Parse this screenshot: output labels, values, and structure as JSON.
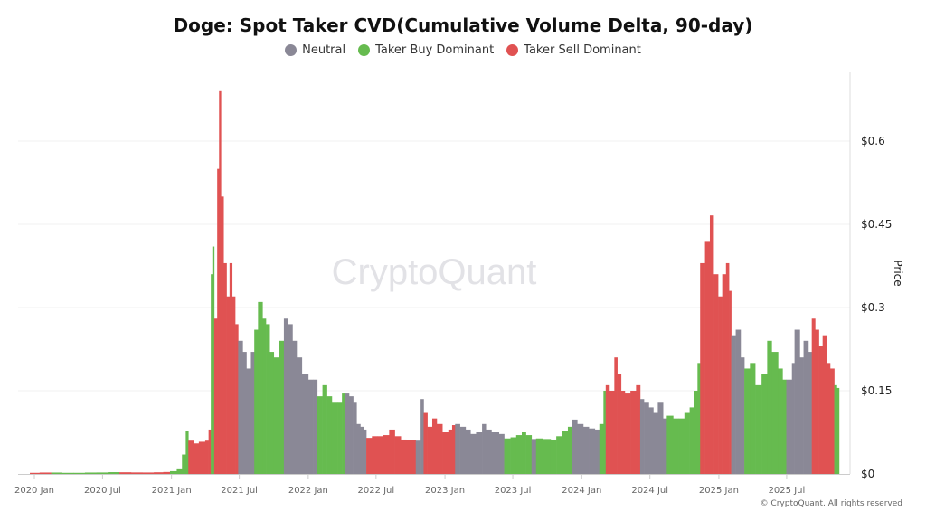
{
  "chart_data": {
    "type": "bar",
    "title": "Doge: Spot Taker CVD(Cumulative Volume Delta, 90-day)",
    "ylabel": "Price",
    "ylim": [
      0,
      0.69
    ],
    "y_ticks": [
      "$0",
      "$0.15",
      "$0.3",
      "$0.45",
      "$0.6"
    ],
    "y_tick_values": [
      0,
      0.15,
      0.3,
      0.45,
      0.6
    ],
    "x_ticks": [
      "2020 Jan",
      "2020 Jul",
      "2021 Jan",
      "2021 Jul",
      "2022 Jan",
      "2022 Jul",
      "2023 Jan",
      "2023 Jul",
      "2024 Jan",
      "2024 Jul",
      "2025 Jan",
      "2025 Jul"
    ],
    "x_tick_dates": [
      "2020-01-01",
      "2020-07-01",
      "2021-01-01",
      "2021-07-01",
      "2022-01-01",
      "2022-07-01",
      "2023-01-01",
      "2023-07-01",
      "2024-01-01",
      "2024-07-01",
      "2025-01-01",
      "2025-07-01"
    ],
    "grid": true,
    "legend_position": "top-center",
    "legend": [
      {
        "key": "N",
        "label": "Neutral",
        "color": "#8a8896"
      },
      {
        "key": "B",
        "label": "Taker Buy Dominant",
        "color": "#66bb4f"
      },
      {
        "key": "S",
        "label": "Taker Sell Dominant",
        "color": "#e05252"
      }
    ],
    "points": [
      [
        "2019-12-20",
        0.002,
        "S"
      ],
      [
        "2020-01-15",
        0.0025,
        "S"
      ],
      [
        "2020-02-15",
        0.0025,
        "B"
      ],
      [
        "2020-03-15",
        0.002,
        "B"
      ],
      [
        "2020-04-15",
        0.002,
        "B"
      ],
      [
        "2020-05-15",
        0.0025,
        "B"
      ],
      [
        "2020-06-15",
        0.0026,
        "B"
      ],
      [
        "2020-07-15",
        0.0032,
        "B"
      ],
      [
        "2020-08-15",
        0.003,
        "S"
      ],
      [
        "2020-09-15",
        0.0027,
        "S"
      ],
      [
        "2020-10-15",
        0.0026,
        "S"
      ],
      [
        "2020-11-15",
        0.003,
        "S"
      ],
      [
        "2020-12-10",
        0.0035,
        "S"
      ],
      [
        "2020-12-28",
        0.005,
        "B"
      ],
      [
        "2021-01-15",
        0.01,
        "B"
      ],
      [
        "2021-01-29",
        0.035,
        "B"
      ],
      [
        "2021-02-08",
        0.077,
        "B"
      ],
      [
        "2021-02-15",
        0.06,
        "S"
      ],
      [
        "2021-03-01",
        0.055,
        "S"
      ],
      [
        "2021-03-15",
        0.058,
        "S"
      ],
      [
        "2021-04-01",
        0.06,
        "S"
      ],
      [
        "2021-04-10",
        0.08,
        "S"
      ],
      [
        "2021-04-16",
        0.36,
        "B"
      ],
      [
        "2021-04-20",
        0.41,
        "B"
      ],
      [
        "2021-04-25",
        0.28,
        "S"
      ],
      [
        "2021-05-03",
        0.55,
        "S"
      ],
      [
        "2021-05-08",
        0.69,
        "S"
      ],
      [
        "2021-05-13",
        0.5,
        "S"
      ],
      [
        "2021-05-20",
        0.38,
        "S"
      ],
      [
        "2021-05-28",
        0.32,
        "S"
      ],
      [
        "2021-06-05",
        0.38,
        "S"
      ],
      [
        "2021-06-12",
        0.32,
        "S"
      ],
      [
        "2021-06-20",
        0.27,
        "S"
      ],
      [
        "2021-06-28",
        0.24,
        "N"
      ],
      [
        "2021-07-10",
        0.22,
        "N"
      ],
      [
        "2021-07-20",
        0.19,
        "N"
      ],
      [
        "2021-08-01",
        0.22,
        "N"
      ],
      [
        "2021-08-10",
        0.26,
        "B"
      ],
      [
        "2021-08-20",
        0.31,
        "B"
      ],
      [
        "2021-09-01",
        0.28,
        "B"
      ],
      [
        "2021-09-10",
        0.27,
        "B"
      ],
      [
        "2021-09-20",
        0.22,
        "B"
      ],
      [
        "2021-10-01",
        0.21,
        "B"
      ],
      [
        "2021-10-15",
        0.24,
        "B"
      ],
      [
        "2021-10-28",
        0.28,
        "N"
      ],
      [
        "2021-11-08",
        0.27,
        "N"
      ],
      [
        "2021-11-20",
        0.24,
        "N"
      ],
      [
        "2021-12-01",
        0.21,
        "N"
      ],
      [
        "2021-12-15",
        0.18,
        "N"
      ],
      [
        "2022-01-01",
        0.17,
        "N"
      ],
      [
        "2022-01-15",
        0.17,
        "N"
      ],
      [
        "2022-01-25",
        0.14,
        "B"
      ],
      [
        "2022-02-08",
        0.16,
        "B"
      ],
      [
        "2022-02-20",
        0.14,
        "B"
      ],
      [
        "2022-03-05",
        0.13,
        "B"
      ],
      [
        "2022-03-20",
        0.13,
        "B"
      ],
      [
        "2022-04-01",
        0.145,
        "B"
      ],
      [
        "2022-04-10",
        0.145,
        "N"
      ],
      [
        "2022-04-20",
        0.14,
        "N"
      ],
      [
        "2022-05-01",
        0.13,
        "N"
      ],
      [
        "2022-05-10",
        0.09,
        "N"
      ],
      [
        "2022-05-20",
        0.085,
        "N"
      ],
      [
        "2022-05-28",
        0.08,
        "N"
      ],
      [
        "2022-06-05",
        0.065,
        "S"
      ],
      [
        "2022-06-20",
        0.068,
        "S"
      ],
      [
        "2022-07-05",
        0.068,
        "S"
      ],
      [
        "2022-07-20",
        0.07,
        "S"
      ],
      [
        "2022-08-05",
        0.08,
        "S"
      ],
      [
        "2022-08-20",
        0.068,
        "S"
      ],
      [
        "2022-09-05",
        0.062,
        "S"
      ],
      [
        "2022-09-20",
        0.061,
        "S"
      ],
      [
        "2022-10-01",
        0.061,
        "S"
      ],
      [
        "2022-10-15",
        0.06,
        "N"
      ],
      [
        "2022-10-28",
        0.135,
        "N"
      ],
      [
        "2022-11-05",
        0.11,
        "S"
      ],
      [
        "2022-11-15",
        0.085,
        "S"
      ],
      [
        "2022-11-28",
        0.1,
        "S"
      ],
      [
        "2022-12-10",
        0.09,
        "S"
      ],
      [
        "2022-12-25",
        0.075,
        "S"
      ],
      [
        "2023-01-10",
        0.08,
        "S"
      ],
      [
        "2023-01-20",
        0.088,
        "S"
      ],
      [
        "2023-01-28",
        0.09,
        "N"
      ],
      [
        "2023-02-10",
        0.085,
        "N"
      ],
      [
        "2023-02-25",
        0.08,
        "N"
      ],
      [
        "2023-03-10",
        0.072,
        "N"
      ],
      [
        "2023-03-25",
        0.075,
        "N"
      ],
      [
        "2023-04-10",
        0.09,
        "N"
      ],
      [
        "2023-04-20",
        0.08,
        "N"
      ],
      [
        "2023-05-05",
        0.075,
        "N"
      ],
      [
        "2023-05-25",
        0.072,
        "N"
      ],
      [
        "2023-06-08",
        0.064,
        "B"
      ],
      [
        "2023-06-25",
        0.066,
        "B"
      ],
      [
        "2023-07-10",
        0.07,
        "B"
      ],
      [
        "2023-07-25",
        0.075,
        "B"
      ],
      [
        "2023-08-05",
        0.07,
        "B"
      ],
      [
        "2023-08-20",
        0.063,
        "N"
      ],
      [
        "2023-09-01",
        0.064,
        "B"
      ],
      [
        "2023-09-20",
        0.063,
        "B"
      ],
      [
        "2023-10-10",
        0.062,
        "B"
      ],
      [
        "2023-10-25",
        0.068,
        "B"
      ],
      [
        "2023-11-10",
        0.078,
        "B"
      ],
      [
        "2023-11-25",
        0.085,
        "B"
      ],
      [
        "2023-12-06",
        0.098,
        "N"
      ],
      [
        "2023-12-20",
        0.09,
        "N"
      ],
      [
        "2024-01-05",
        0.085,
        "N"
      ],
      [
        "2024-01-20",
        0.082,
        "N"
      ],
      [
        "2024-02-05",
        0.08,
        "N"
      ],
      [
        "2024-02-17",
        0.09,
        "B"
      ],
      [
        "2024-02-28",
        0.15,
        "B"
      ],
      [
        "2024-03-05",
        0.16,
        "S"
      ],
      [
        "2024-03-15",
        0.15,
        "S"
      ],
      [
        "2024-03-28",
        0.21,
        "S"
      ],
      [
        "2024-04-05",
        0.18,
        "S"
      ],
      [
        "2024-04-15",
        0.15,
        "S"
      ],
      [
        "2024-04-25",
        0.145,
        "S"
      ],
      [
        "2024-05-10",
        0.15,
        "S"
      ],
      [
        "2024-05-25",
        0.16,
        "S"
      ],
      [
        "2024-06-05",
        0.135,
        "N"
      ],
      [
        "2024-06-15",
        0.13,
        "N"
      ],
      [
        "2024-06-28",
        0.12,
        "N"
      ],
      [
        "2024-07-10",
        0.11,
        "N"
      ],
      [
        "2024-07-22",
        0.13,
        "N"
      ],
      [
        "2024-08-05",
        0.1,
        "N"
      ],
      [
        "2024-08-15",
        0.105,
        "B"
      ],
      [
        "2024-09-01",
        0.1,
        "B"
      ],
      [
        "2024-09-15",
        0.1,
        "B"
      ],
      [
        "2024-10-01",
        0.11,
        "B"
      ],
      [
        "2024-10-15",
        0.12,
        "B"
      ],
      [
        "2024-10-28",
        0.15,
        "B"
      ],
      [
        "2024-11-05",
        0.2,
        "B"
      ],
      [
        "2024-11-12",
        0.38,
        "S"
      ],
      [
        "2024-11-25",
        0.42,
        "S"
      ],
      [
        "2024-12-08",
        0.466,
        "S"
      ],
      [
        "2024-12-18",
        0.36,
        "S"
      ],
      [
        "2024-12-30",
        0.32,
        "S"
      ],
      [
        "2025-01-10",
        0.36,
        "S"
      ],
      [
        "2025-01-20",
        0.38,
        "S"
      ],
      [
        "2025-01-28",
        0.33,
        "S"
      ],
      [
        "2025-02-03",
        0.25,
        "N"
      ],
      [
        "2025-02-15",
        0.26,
        "N"
      ],
      [
        "2025-02-28",
        0.21,
        "N"
      ],
      [
        "2025-03-10",
        0.19,
        "B"
      ],
      [
        "2025-03-25",
        0.2,
        "B"
      ],
      [
        "2025-04-08",
        0.16,
        "B"
      ],
      [
        "2025-04-25",
        0.18,
        "B"
      ],
      [
        "2025-05-10",
        0.24,
        "B"
      ],
      [
        "2025-05-22",
        0.22,
        "B"
      ],
      [
        "2025-06-08",
        0.19,
        "B"
      ],
      [
        "2025-06-20",
        0.17,
        "B"
      ],
      [
        "2025-06-30",
        0.17,
        "N"
      ],
      [
        "2025-07-15",
        0.2,
        "N"
      ],
      [
        "2025-07-22",
        0.26,
        "N"
      ],
      [
        "2025-08-05",
        0.21,
        "N"
      ],
      [
        "2025-08-15",
        0.24,
        "N"
      ],
      [
        "2025-08-28",
        0.22,
        "N"
      ],
      [
        "2025-09-06",
        0.28,
        "S"
      ],
      [
        "2025-09-15",
        0.26,
        "S"
      ],
      [
        "2025-09-25",
        0.23,
        "S"
      ],
      [
        "2025-10-05",
        0.25,
        "S"
      ],
      [
        "2025-10-15",
        0.2,
        "S"
      ],
      [
        "2025-10-25",
        0.19,
        "S"
      ],
      [
        "2025-11-05",
        0.16,
        "B"
      ],
      [
        "2025-11-12",
        0.155,
        "B"
      ]
    ],
    "end_date": "2025-11-18",
    "watermark": "CryptoQuant"
  },
  "footer": {
    "copyright": "© CryptoQuant. All rights reserved"
  }
}
